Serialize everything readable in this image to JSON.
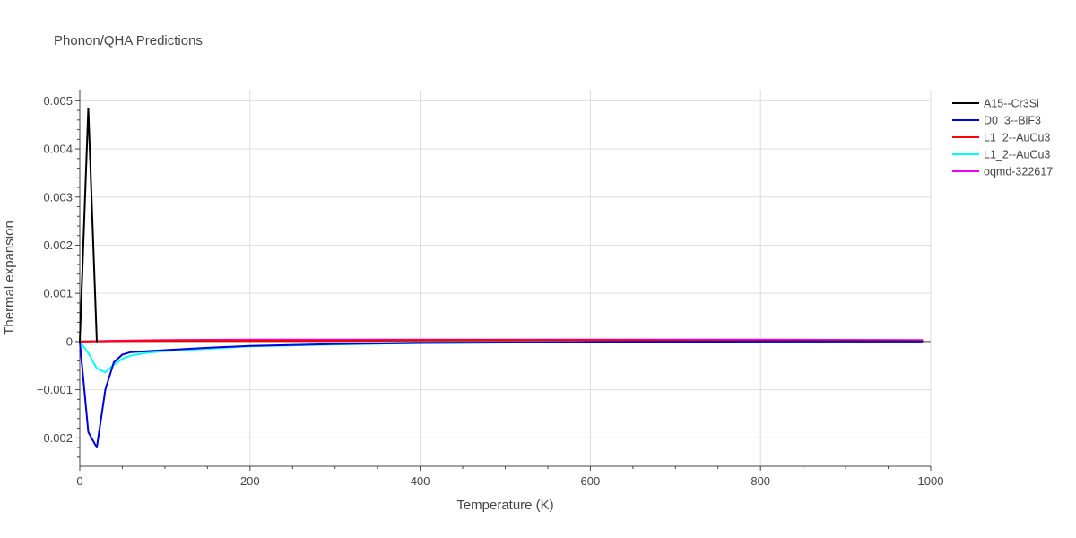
{
  "chart_data": {
    "type": "line",
    "title": "Phonon/QHA Predictions",
    "xlabel": "Temperature (K)",
    "ylabel": "Thermal expansion",
    "xlim": [
      0,
      1000
    ],
    "ylim": [
      -0.00259,
      0.00523
    ],
    "x_ticks": [
      0,
      200,
      400,
      600,
      800,
      1000
    ],
    "x_tick_labels": [
      "0",
      "200",
      "400",
      "600",
      "800",
      "1000"
    ],
    "y_ticks": [
      -0.002,
      -0.001,
      0,
      0.001,
      0.002,
      0.003,
      0.004,
      0.005
    ],
    "y_tick_labels": [
      "−0.002",
      "−0.001",
      "0",
      "0.001",
      "0.002",
      "0.003",
      "0.004",
      "0.005"
    ],
    "grid": true,
    "legend_position": "top-right",
    "series": [
      {
        "name": "A15--Cr3Si",
        "color": "#000000",
        "x": [
          0,
          10,
          20
        ],
        "y": [
          0,
          0.00484,
          0
        ]
      },
      {
        "name": "D0_3--BiF3",
        "color": "#0000dd",
        "x": [
          0,
          10,
          20,
          30,
          40,
          50,
          60,
          80,
          100,
          150,
          200,
          300,
          400,
          500,
          600,
          800,
          990
        ],
        "y": [
          0,
          -0.00188,
          -0.0022,
          -0.001,
          -0.00043,
          -0.00027,
          -0.00022,
          -0.0002,
          -0.00018,
          -0.00013,
          -9e-05,
          -5e-05,
          -3e-05,
          -2e-05,
          -1e-05,
          0,
          0
        ]
      },
      {
        "name": "L1_2--AuCu3",
        "color": "#ff0000",
        "x": [
          0,
          50,
          100,
          200,
          300,
          400,
          500,
          600,
          800,
          990
        ],
        "y": [
          0,
          1e-05,
          2e-05,
          2e-05,
          2e-05,
          3e-05,
          3e-05,
          3e-05,
          2e-05,
          2e-05
        ]
      },
      {
        "name": "L1_2--AuCu3",
        "color": "#00ffff",
        "x": [
          0,
          10,
          20,
          30,
          40,
          50,
          60,
          80,
          100,
          150,
          200,
          300,
          400,
          500,
          600,
          800,
          990
        ],
        "y": [
          0,
          -0.00024,
          -0.00056,
          -0.00064,
          -0.00048,
          -0.00036,
          -0.00029,
          -0.00023,
          -0.0002,
          -0.00015,
          -0.0001,
          -6e-05,
          -3e-05,
          -2e-05,
          -1e-05,
          0,
          0
        ]
      },
      {
        "name": "oqmd-322617",
        "color": "#ee00ee",
        "x": [
          0,
          50,
          100,
          200,
          300,
          400,
          500,
          600,
          800,
          990
        ],
        "y": [
          0,
          2e-05,
          3e-05,
          4e-05,
          4e-05,
          4e-05,
          4e-05,
          4e-05,
          4e-05,
          3e-05
        ]
      }
    ]
  }
}
